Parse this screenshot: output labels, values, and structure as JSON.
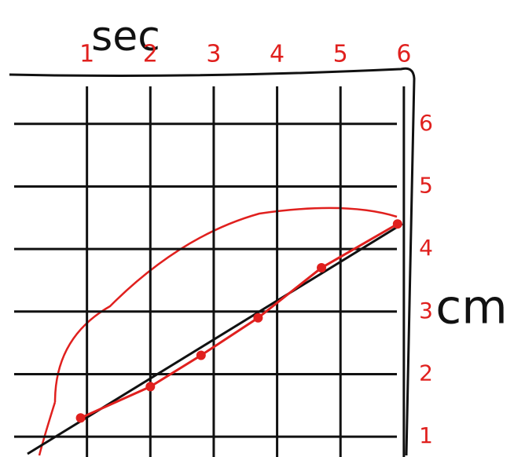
{
  "chart_data": {
    "type": "line",
    "x_label": "sec",
    "y_label": "cm",
    "x": [
      0.9,
      2,
      2.8,
      3.7,
      4.7,
      5.9
    ],
    "series": [
      {
        "color": "#e0201e",
        "values": [
          1.3,
          1.8,
          2.3,
          2.9,
          3.7,
          4.4
        ]
      }
    ],
    "xlim": [
      0,
      6.2
    ],
    "xticks": [
      1,
      2,
      3,
      4,
      5,
      6
    ],
    "ylim": [
      0.7,
      6.6
    ],
    "yticks": [
      1,
      2,
      3,
      4,
      5,
      6
    ],
    "grid": true,
    "tick_color": "#e0201e"
  }
}
